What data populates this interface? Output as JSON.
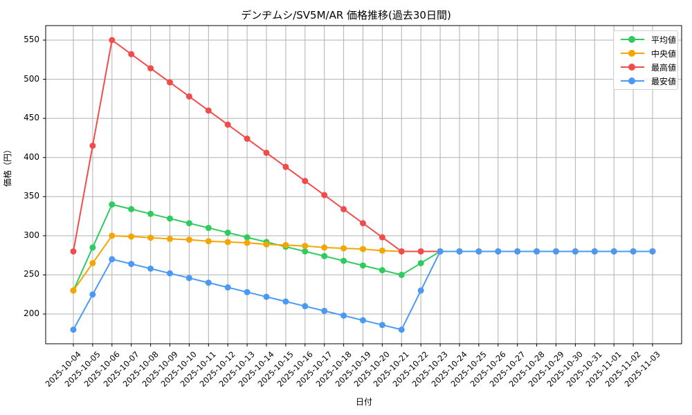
{
  "chart_data": {
    "type": "line",
    "title": "デンヂムシ/SV5M/AR 価格推移(過去30日間)",
    "xlabel": "日付",
    "ylabel": "価格（円）",
    "ylim": [
      162,
      567
    ],
    "yticks": [
      200,
      250,
      300,
      350,
      400,
      450,
      500,
      550
    ],
    "grid": true,
    "legend_position": "upper right",
    "x": [
      "2025-10-04",
      "2025-10-05",
      "2025-10-06",
      "2025-10-07",
      "2025-10-08",
      "2025-10-09",
      "2025-10-10",
      "2025-10-11",
      "2025-10-12",
      "2025-10-13",
      "2025-10-14",
      "2025-10-15",
      "2025-10-16",
      "2025-10-17",
      "2025-10-18",
      "2025-10-19",
      "2025-10-20",
      "2025-10-21",
      "2025-10-22",
      "2025-10-23",
      "2025-10-24",
      "2025-10-25",
      "2025-10-26",
      "2025-10-27",
      "2025-10-28",
      "2025-10-29",
      "2025-10-30",
      "2025-10-31",
      "2025-11-01",
      "2025-11-02",
      "2025-11-03"
    ],
    "series": [
      {
        "name": "平均値",
        "color": "#2ecc5f",
        "values": [
          230,
          285,
          340,
          334,
          328,
          322,
          316,
          310,
          304,
          298,
          292,
          286,
          280,
          274,
          268,
          262,
          256,
          250,
          265,
          280,
          280,
          280,
          280,
          280,
          280,
          280,
          280,
          280,
          280,
          280,
          280
        ]
      },
      {
        "name": "中央値",
        "color": "#f5a500",
        "values": [
          230,
          265,
          300,
          299,
          297.5,
          296,
          295,
          293,
          292,
          291,
          289,
          288,
          287,
          285,
          284,
          283,
          281,
          280,
          280,
          280,
          280,
          280,
          280,
          280,
          280,
          280,
          280,
          280,
          280,
          280,
          280
        ]
      },
      {
        "name": "最高値",
        "color": "#f24b4b",
        "values": [
          280,
          415,
          550,
          532,
          514,
          496,
          478,
          460,
          442,
          424,
          406,
          388,
          370,
          352,
          334,
          316,
          298,
          280,
          280,
          280,
          280,
          280,
          280,
          280,
          280,
          280,
          280,
          280,
          280,
          280,
          280
        ]
      },
      {
        "name": "最安値",
        "color": "#4a9af5",
        "values": [
          180,
          225,
          270,
          264,
          258,
          252,
          246,
          240,
          234,
          228,
          222,
          216,
          210,
          204,
          198,
          192,
          186,
          180,
          230,
          280,
          280,
          280,
          280,
          280,
          280,
          280,
          280,
          280,
          280,
          280,
          280
        ]
      }
    ]
  }
}
